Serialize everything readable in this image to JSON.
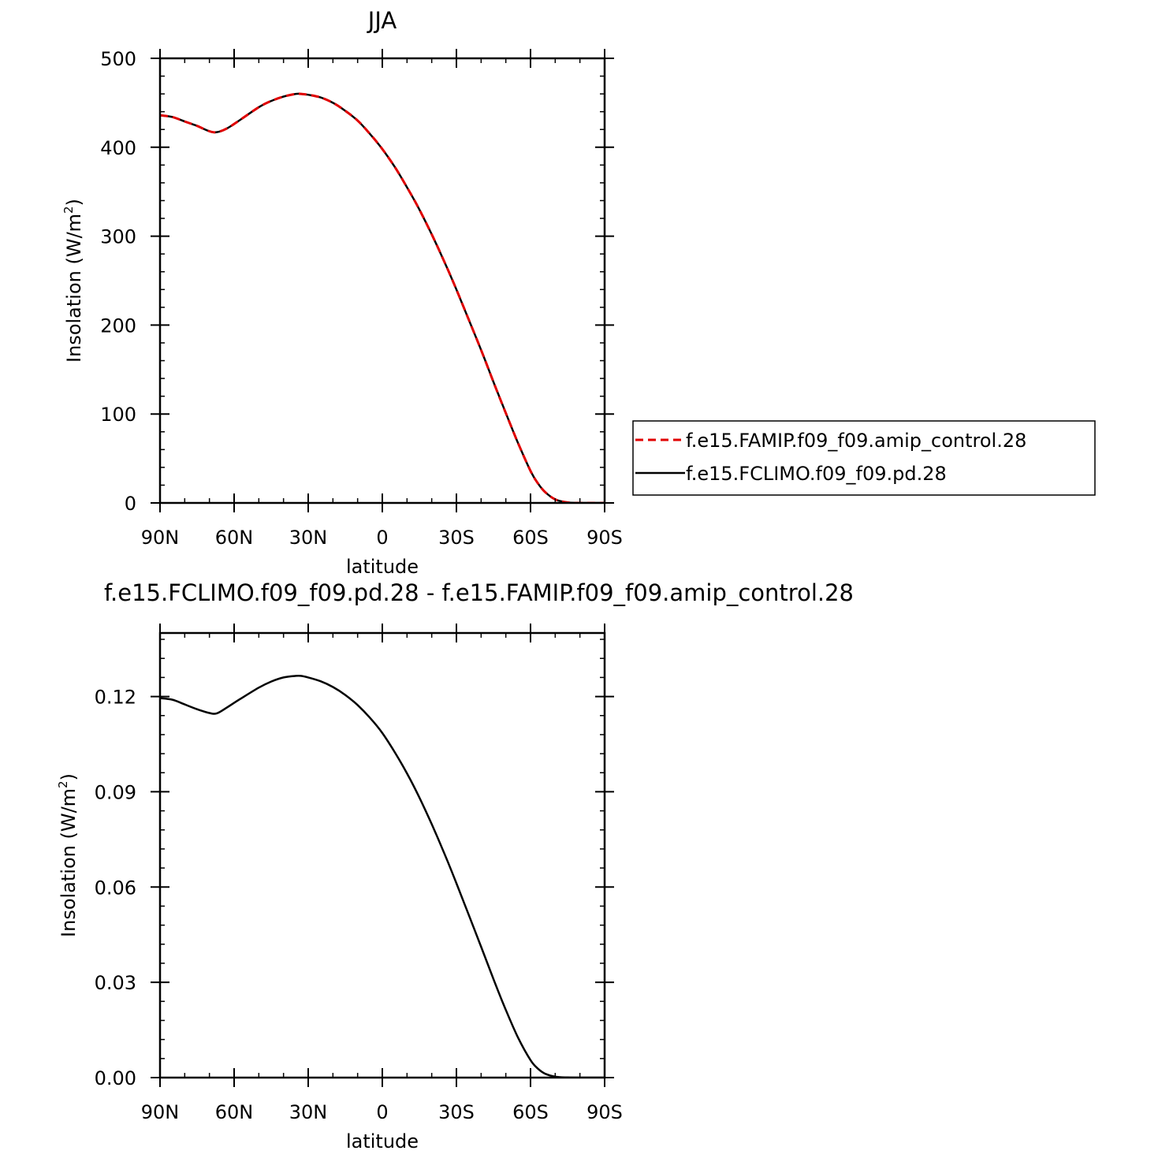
{
  "chart_data": [
    {
      "type": "line",
      "title": "JJA",
      "xlabel": "latitude",
      "ylabel": "Insolation (W/m²)",
      "ylabel_base": "Insolation (W/m",
      "ylabel_sup": "2",
      "ylabel_close": ")",
      "x_ticks": [
        -90,
        -60,
        -30,
        0,
        30,
        60,
        90
      ],
      "x_tick_labels": [
        "90N",
        "60N",
        "30N",
        "0",
        "30S",
        "60S",
        "90S"
      ],
      "y_ticks": [
        0,
        100,
        200,
        300,
        400,
        500
      ],
      "y_tick_labels": [
        "0",
        "100",
        "200",
        "300",
        "400",
        "500"
      ],
      "xlim": [
        -90,
        90
      ],
      "ylim": [
        0,
        500
      ],
      "grid": false,
      "legend_position": "right",
      "series": [
        {
          "name": "f.e15.FAMIP.f09_f09.amip_control.28",
          "color": "#e00000",
          "style": "dashed",
          "x": [
            -90,
            -85,
            -80,
            -75,
            -70,
            -67,
            -63,
            -58,
            -50,
            -45,
            -40,
            -35,
            -33,
            -30,
            -25,
            -20,
            -15,
            -10,
            -5,
            0,
            5,
            10,
            15,
            20,
            25,
            30,
            35,
            40,
            45,
            50,
            55,
            60,
            63,
            66,
            70,
            75,
            80,
            85,
            90
          ],
          "y": [
            436,
            434,
            429,
            424,
            418,
            417,
            421,
            430,
            445,
            452,
            457,
            460,
            460,
            459,
            456,
            450,
            441,
            430,
            415,
            398,
            378,
            355,
            330,
            302,
            272,
            240,
            206,
            172,
            136,
            101,
            67,
            36,
            22,
            12,
            4,
            0.5,
            0,
            0,
            0
          ]
        },
        {
          "name": "f.e15.FCLIMO.f09_f09.pd.28",
          "color": "#000000",
          "style": "solid",
          "x": [
            -90,
            -85,
            -80,
            -75,
            -70,
            -67,
            -63,
            -58,
            -50,
            -45,
            -40,
            -35,
            -33,
            -30,
            -25,
            -20,
            -15,
            -10,
            -5,
            0,
            5,
            10,
            15,
            20,
            25,
            30,
            35,
            40,
            45,
            50,
            55,
            60,
            63,
            66,
            70,
            75,
            80,
            85,
            90
          ],
          "y": [
            436,
            434,
            429,
            424,
            418,
            417,
            421,
            430,
            445,
            452,
            457,
            460,
            460,
            459,
            456,
            450,
            441,
            430,
            415,
            398,
            378,
            355,
            330,
            302,
            272,
            240,
            206,
            172,
            136,
            101,
            67,
            36,
            22,
            12,
            4,
            0.5,
            0,
            0,
            0
          ]
        }
      ]
    },
    {
      "type": "line",
      "title": "f.e15.FCLIMO.f09_f09.pd.28 - f.e15.FAMIP.f09_f09.amip_control.28",
      "xlabel": "latitude",
      "ylabel": "Insolation (W/m²)",
      "ylabel_base": "Insolation (W/m",
      "ylabel_sup": "2",
      "ylabel_close": ")",
      "x_ticks": [
        -90,
        -60,
        -30,
        0,
        30,
        60,
        90
      ],
      "x_tick_labels": [
        "90N",
        "60N",
        "30N",
        "0",
        "30S",
        "60S",
        "90S"
      ],
      "y_ticks": [
        0,
        0.03,
        0.06,
        0.09,
        0.12
      ],
      "y_tick_labels": [
        "0.00",
        "0.03",
        "0.06",
        "0.09",
        "0.12"
      ],
      "xlim": [
        -90,
        90
      ],
      "ylim": [
        0,
        0.14
      ],
      "grid": false,
      "series": [
        {
          "name": "",
          "color": "#000000",
          "style": "solid",
          "x": [
            -90,
            -85,
            -80,
            -75,
            -70,
            -67,
            -63,
            -58,
            -50,
            -45,
            -40,
            -35,
            -33,
            -30,
            -25,
            -20,
            -15,
            -10,
            -5,
            0,
            5,
            10,
            15,
            20,
            25,
            30,
            35,
            40,
            45,
            50,
            55,
            60,
            63,
            66,
            70,
            75,
            80,
            85,
            90
          ],
          "y": [
            0.1195,
            0.119,
            0.1175,
            0.116,
            0.1148,
            0.1147,
            0.1165,
            0.119,
            0.1228,
            0.1247,
            0.126,
            0.1265,
            0.1265,
            0.126,
            0.1248,
            0.123,
            0.1205,
            0.1173,
            0.1133,
            0.1085,
            0.1025,
            0.0958,
            0.0882,
            0.0798,
            0.0708,
            0.0612,
            0.0512,
            0.0412,
            0.031,
            0.0213,
            0.0125,
            0.0055,
            0.0028,
            0.0012,
            0.0003,
            5e-05,
            0,
            0,
            0
          ]
        }
      ]
    }
  ]
}
